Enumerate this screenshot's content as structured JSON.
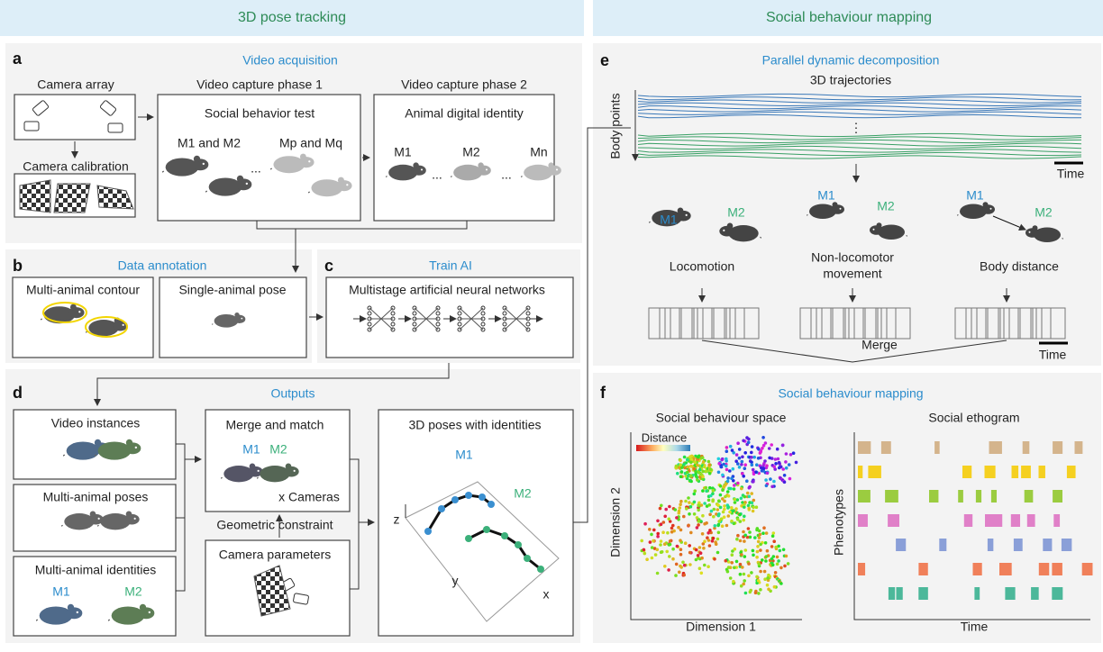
{
  "headers": [
    "3D pose tracking",
    "Social behaviour mapping"
  ],
  "panel_a": {
    "letter": "a",
    "title": "Video acquisition",
    "camera_array": "Camera array",
    "camera_calibration": "Camera calibration",
    "phase1": {
      "title": "Video capture phase 1",
      "subtitle": "Social behavior test",
      "group1": "M1 and M2",
      "ellipsis": "...",
      "group2": "Mp and Mq"
    },
    "phase2": {
      "title": "Video capture phase 2",
      "subtitle": "Animal digital identity",
      "labels": [
        "M1",
        "...",
        "M2",
        "...",
        "Mn"
      ]
    }
  },
  "panel_b": {
    "letter": "b",
    "title": "Data annotation",
    "contour": "Multi-animal contour",
    "pose": "Single-animal pose"
  },
  "panel_c": {
    "letter": "c",
    "title": "Train AI",
    "network": "Multistage artificial neural networks"
  },
  "panel_d": {
    "letter": "d",
    "title": "Outputs",
    "video_instances": "Video instances",
    "poses": "Multi-animal poses",
    "identities": "Multi-animal identities",
    "identity_labels": [
      "M1",
      "M2"
    ],
    "merge": {
      "title": "Merge and match",
      "labels": [
        "M1",
        "M2"
      ],
      "cameras": "x Cameras"
    },
    "geometric_constraint": "Geometric constraint",
    "camera_parameters": "Camera parameters",
    "poses_3d": {
      "title": "3D poses with identities",
      "labels": [
        "M1",
        "M2"
      ],
      "axes": [
        "z",
        "y",
        "x"
      ]
    }
  },
  "panel_e": {
    "letter": "e",
    "title": "Parallel dynamic decomposition",
    "trajectories": "3D trajectories",
    "body_points": "Body points",
    "time": "Time",
    "vdots": "⋮",
    "mice_labels": [
      "M1",
      "M2",
      "M1",
      "M2",
      "M1",
      "M2"
    ],
    "modules": [
      "Locomotion",
      "Non-locomotor",
      "movement",
      "Body distance"
    ],
    "merge": "Merge",
    "time2": "Time"
  },
  "panel_f": {
    "letter": "f",
    "title": "Social behaviour mapping",
    "space": "Social behaviour space",
    "ethogram": "Social ethogram",
    "distance": "Distance",
    "dimension1": "Dimension 1",
    "dimension2": "Dimension 2",
    "phenotypes": "Phenotypes",
    "time": "Time"
  }
}
